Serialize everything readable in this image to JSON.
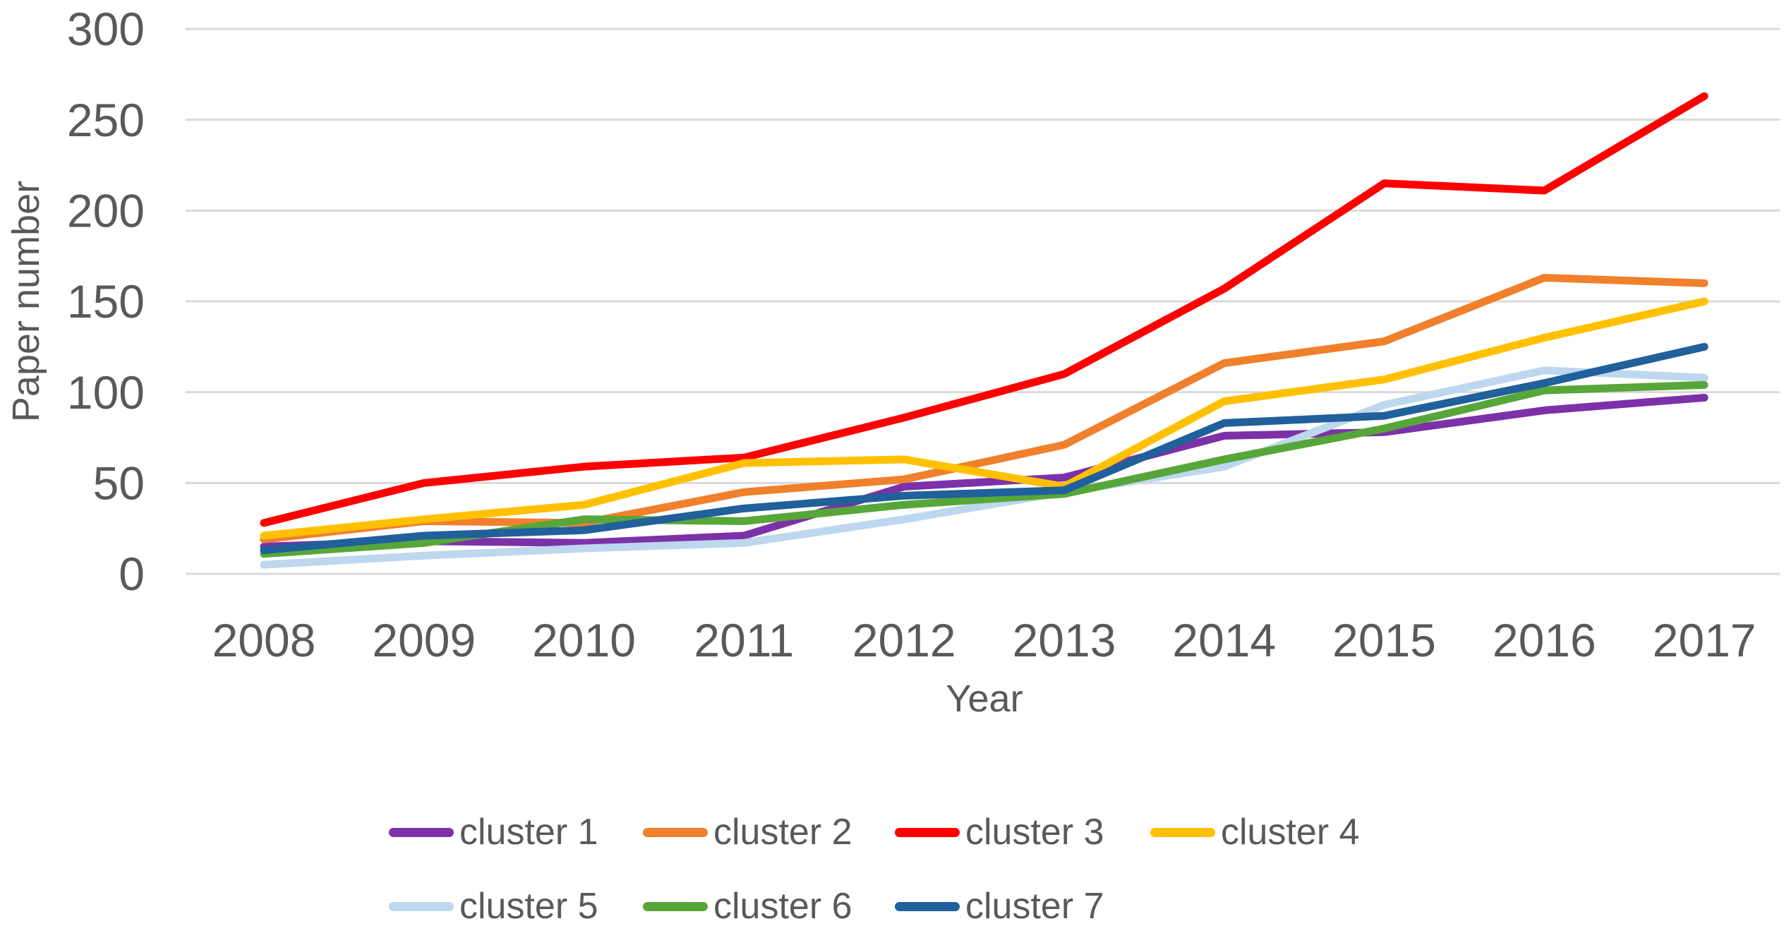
{
  "chart_data": {
    "type": "line",
    "title": "",
    "xlabel": "Year",
    "ylabel": "Paper number",
    "x": [
      2008,
      2009,
      2010,
      2011,
      2012,
      2013,
      2014,
      2015,
      2016,
      2017
    ],
    "yticks": [
      0,
      50,
      100,
      150,
      200,
      250,
      300
    ],
    "ylim": [
      0,
      300
    ],
    "grid": "horizontal",
    "gridline_color": "#D9D9D9",
    "text_color": "#595959",
    "legend_position": "bottom",
    "series": [
      {
        "name": "cluster 1",
        "color": "#7D31A8",
        "values": [
          15,
          18,
          17,
          21,
          48,
          53,
          76,
          78,
          90,
          97
        ]
      },
      {
        "name": "cluster 2",
        "color": "#F0802C",
        "values": [
          19,
          29,
          28,
          45,
          52,
          71,
          116,
          128,
          163,
          160
        ]
      },
      {
        "name": "cluster 3",
        "color": "#FE0000",
        "values": [
          28,
          50,
          59,
          64,
          86,
          110,
          157,
          215,
          211,
          263
        ]
      },
      {
        "name": "cluster 4",
        "color": "#FFC000",
        "values": [
          21,
          30,
          38,
          61,
          63,
          48,
          95,
          107,
          130,
          150
        ]
      },
      {
        "name": "cluster 5",
        "color": "#BDD7EE",
        "values": [
          5,
          10,
          14,
          17,
          30,
          45,
          59,
          93,
          112,
          108
        ]
      },
      {
        "name": "cluster 6",
        "color": "#57A639",
        "values": [
          11,
          17,
          30,
          29,
          38,
          44,
          63,
          80,
          101,
          104
        ]
      },
      {
        "name": "cluster 7",
        "color": "#20609B",
        "values": [
          13,
          21,
          24,
          36,
          43,
          46,
          83,
          87,
          105,
          125
        ]
      }
    ],
    "legend_rows": [
      [
        "cluster 1",
        "cluster 2",
        "cluster 3",
        "cluster 4"
      ],
      [
        "cluster 5",
        "cluster 6",
        "cluster 7"
      ]
    ]
  }
}
